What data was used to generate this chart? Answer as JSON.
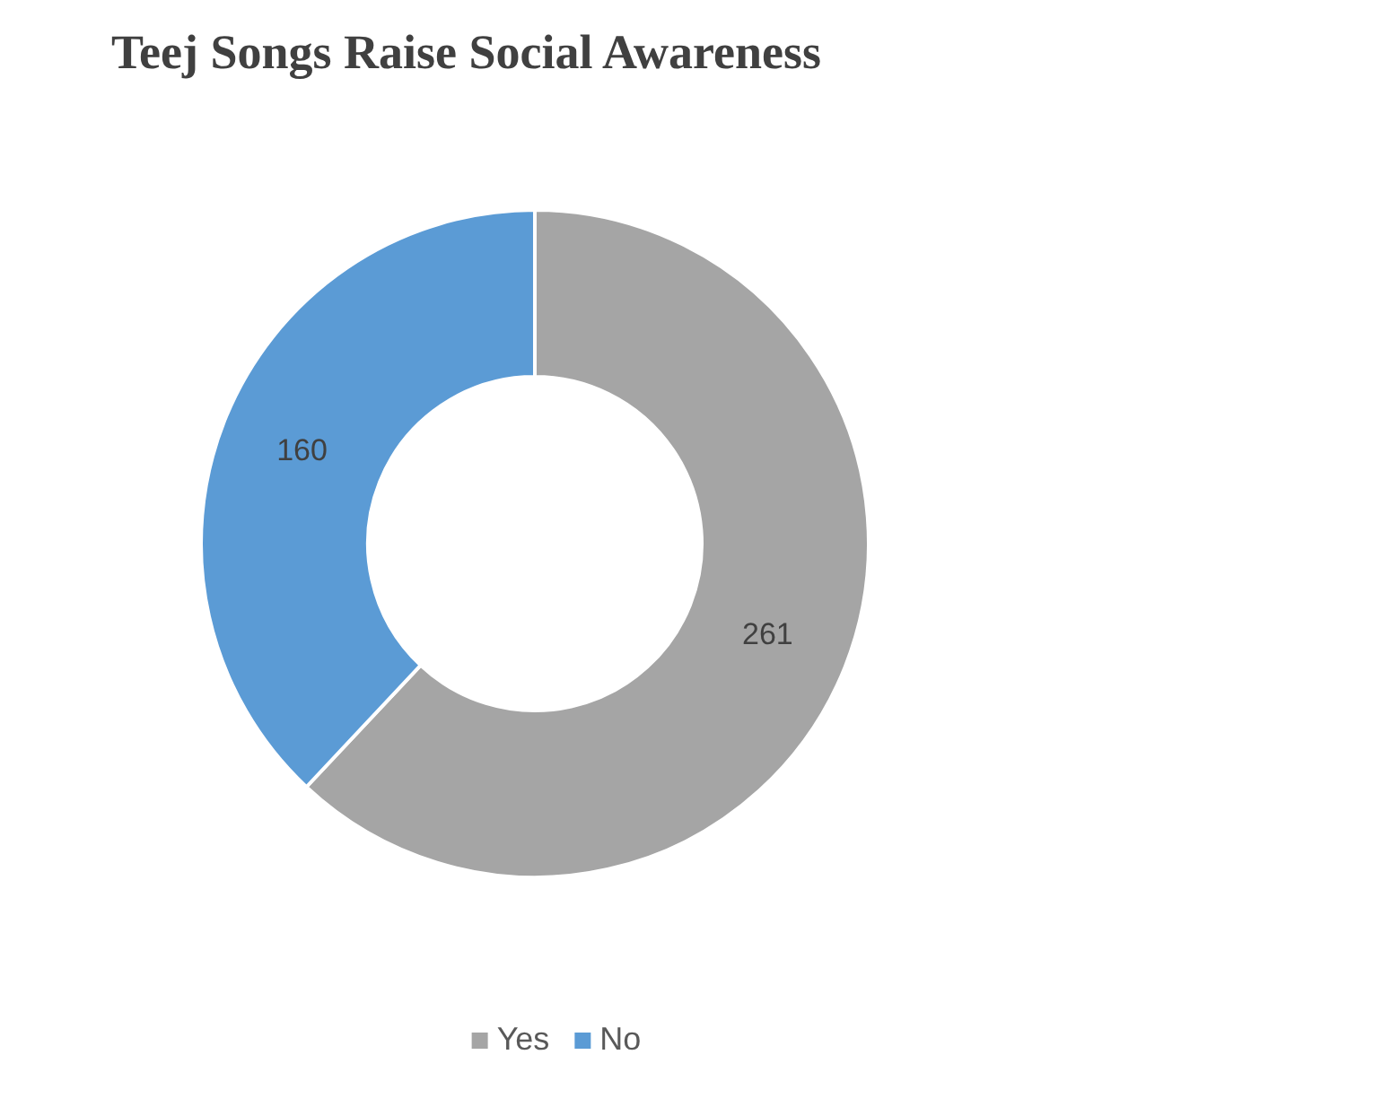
{
  "chart_data": {
    "type": "donut",
    "title": "Teej Songs Raise Social Awareness",
    "categories": [
      "Yes",
      "No"
    ],
    "values": [
      261,
      160
    ],
    "colors": [
      "#a5a5a5",
      "#5b9bd5"
    ],
    "data_labels": true,
    "legend": "bottom"
  }
}
